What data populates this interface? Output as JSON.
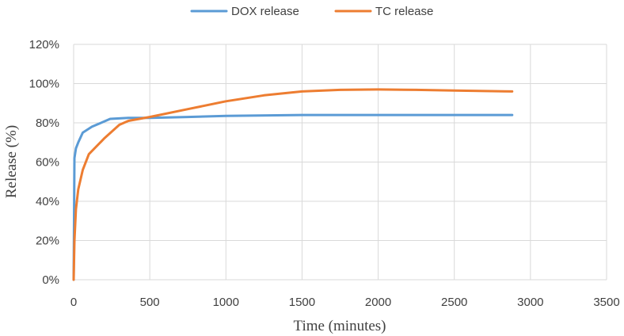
{
  "chart_data": {
    "type": "line",
    "title": "",
    "xlabel": "Time (minutes)",
    "ylabel": "Release (%)",
    "xlim": [
      0,
      3500
    ],
    "ylim": [
      0,
      120
    ],
    "x_ticks": [
      "0",
      "500",
      "1000",
      "1500",
      "2000",
      "2500",
      "3000",
      "3500"
    ],
    "y_ticks": [
      "0%",
      "20%",
      "40%",
      "60%",
      "80%",
      "100%",
      "120%"
    ],
    "grid": true,
    "legend_position": "top",
    "series": [
      {
        "name": "DOX release",
        "color": "#5B9BD5",
        "x": [
          0,
          5,
          15,
          30,
          60,
          120,
          180,
          240,
          360,
          500,
          750,
          1000,
          1500,
          2000,
          2500,
          2880
        ],
        "y": [
          0,
          62,
          67,
          70,
          75,
          78,
          80,
          82,
          82.5,
          82.5,
          83,
          83.5,
          84,
          84,
          84,
          84
        ]
      },
      {
        "name": "TC release",
        "color": "#ED7D31",
        "x": [
          0,
          5,
          15,
          30,
          60,
          100,
          200,
          300,
          360,
          500,
          750,
          1000,
          1250,
          1500,
          1750,
          2000,
          2250,
          2500,
          2880
        ],
        "y": [
          0,
          20,
          36,
          46,
          56,
          64,
          72,
          79,
          81,
          83,
          87,
          91,
          94,
          96,
          96.8,
          97,
          96.8,
          96.5,
          96
        ]
      }
    ]
  }
}
